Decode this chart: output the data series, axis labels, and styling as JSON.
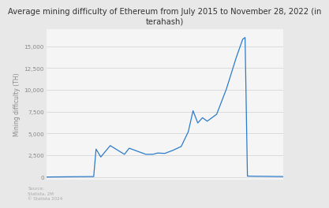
{
  "title": "Average mining difficulty of Ethereum from July 2015 to November 28, 2022 (in\nterahash)",
  "ylabel": "Mining difficulty (TH)",
  "yticks": [
    0,
    2500,
    5000,
    7500,
    10000,
    12500,
    15000
  ],
  "ytick_labels": [
    "0",
    "2,500",
    "5,000",
    "7,500",
    "10,000",
    "12,500",
    "15,000"
  ],
  "ylim": [
    -300,
    17000
  ],
  "xlim": [
    0,
    100
  ],
  "line_color": "#2b7bca",
  "bg_color": "#e8e8e8",
  "plot_bg_color": "#f5f5f5",
  "grid_color": "#d0d0d0",
  "title_fontsize": 7.2,
  "label_fontsize": 5.5,
  "tick_fontsize": 5.2,
  "source_text": "Source:\nStatista, 2M\n© Statista 2024"
}
